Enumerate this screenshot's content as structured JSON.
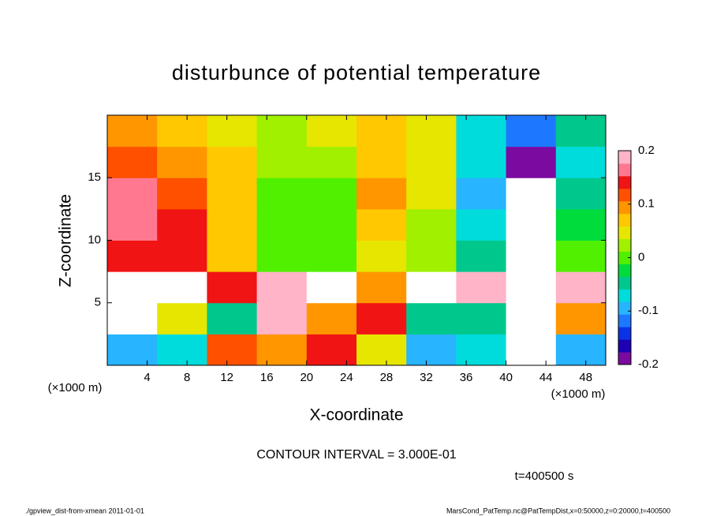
{
  "chart_data": {
    "type": "heatmap",
    "title": "disturbunce of potential temperature",
    "x_label": "X-coordinate",
    "y_label": "Z-coordinate",
    "x_unit": "(×1000 m)",
    "y_unit": "(×1000 m)",
    "x": [
      2.5,
      7.5,
      12.5,
      17.5,
      22.5,
      27.5,
      32.5,
      37.5,
      42.5,
      47.5
    ],
    "y": [
      1.25,
      3.75,
      6.25,
      8.75,
      11.25,
      13.75,
      16.25,
      18.75
    ],
    "values": [
      [
        -0.1,
        -0.08,
        0.12,
        0.1,
        0.15,
        0.05,
        -0.1,
        -0.08,
        0.25,
        -0.1
      ],
      [
        0.25,
        0.05,
        -0.05,
        0.18,
        0.1,
        0.15,
        -0.05,
        -0.05,
        0.25,
        0.1
      ],
      [
        0.25,
        0.25,
        0.15,
        0.2,
        0.25,
        0.1,
        0.25,
        0.2,
        -0.25,
        0.2
      ],
      [
        0.15,
        0.15,
        0.08,
        0.0,
        0.01,
        0.05,
        0.02,
        -0.05,
        -0.3,
        0.0
      ],
      [
        0.17,
        0.14,
        0.07,
        0.0,
        0.0,
        0.08,
        0.03,
        -0.08,
        -0.3,
        -0.02
      ],
      [
        0.16,
        0.12,
        0.06,
        0.01,
        0.0,
        0.1,
        0.04,
        -0.1,
        -0.25,
        -0.05
      ],
      [
        0.12,
        0.1,
        0.06,
        0.02,
        0.02,
        0.08,
        0.04,
        -0.08,
        -0.2,
        -0.06
      ],
      [
        0.1,
        0.08,
        0.05,
        0.03,
        0.05,
        0.07,
        0.05,
        -0.06,
        -0.12,
        -0.05
      ]
    ],
    "xlim": [
      0,
      50
    ],
    "ylim": [
      0,
      20
    ],
    "xticks": [
      4,
      8,
      12,
      16,
      20,
      24,
      28,
      32,
      36,
      40,
      44,
      48
    ],
    "yticks": [
      5,
      10,
      15
    ],
    "clim": [
      -0.2,
      0.2
    ],
    "cticks": [
      -0.2,
      -0.1,
      0,
      0.1,
      0.2
    ],
    "colormap": [
      "#7b0aa0",
      "#1e00b4",
      "#0a32e6",
      "#1e78ff",
      "#28b4ff",
      "#00dcdc",
      "#00c88c",
      "#00dc3c",
      "#50f000",
      "#a0f000",
      "#e6e600",
      "#ffc800",
      "#ff9600",
      "#ff5000",
      "#f01414",
      "#ff7890",
      "#ffb4c8"
    ],
    "out_of_range_color": "#ffffff",
    "contour_note": "CONTOUR INTERVAL = 3.000E-01",
    "time_note": "t=400500 s",
    "footer_left": "./gpview_dist-from-xmean  2011-01-01",
    "footer_right": "MarsCond_PatTemp.nc@PatTempDist,x=0:50000,z=0:20000,t=400500"
  }
}
